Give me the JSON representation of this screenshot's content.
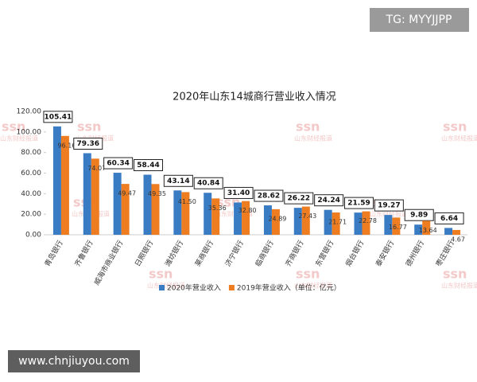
{
  "chart_data": {
    "type": "bar",
    "title": "2020年山东14城商行营业收入情况",
    "categories": [
      "青岛银行",
      "齐鲁银行",
      "威海市商业银行",
      "日照银行",
      "潍坊银行",
      "莱商银行",
      "济宁银行",
      "临商银行",
      "齐商银行",
      "东营银行",
      "烟台银行",
      "泰安银行",
      "德州银行",
      "枣庄银行"
    ],
    "series": [
      {
        "name": "2020年营业收入",
        "color": "#3a7cc3",
        "values": [
          105.41,
          79.36,
          60.34,
          58.44,
          43.14,
          40.84,
          31.4,
          28.62,
          26.22,
          24.24,
          21.59,
          19.27,
          9.89,
          6.64
        ],
        "value_labels": [
          "105.41",
          "79.36",
          "60.34",
          "58.44",
          "43.14",
          "40.84",
          "31.40",
          "28.62",
          "26.22",
          "24.24",
          "21.59",
          "19.27",
          "9.89",
          "6.64"
        ]
      },
      {
        "name": "2019年营业收入（单位：亿元）",
        "color": "#ee7d22",
        "values": [
          96.16,
          74.07,
          49.47,
          49.35,
          41.5,
          35.36,
          32.8,
          24.89,
          27.43,
          21.71,
          22.78,
          16.77,
          13.64,
          4.67
        ],
        "value_labels": [
          "96.16",
          "74.07",
          "49.47",
          "49.35",
          "41.50",
          "35.36",
          "32.80",
          "24.89",
          "27.43",
          "21.71",
          "22.78",
          "16.77",
          "13.64",
          "4.67"
        ]
      }
    ],
    "ylim": [
      0,
      120
    ],
    "yticks": [
      {
        "value": 0,
        "label": "0.00"
      },
      {
        "value": 20,
        "label": "20.00"
      },
      {
        "value": 40,
        "label": "40.00"
      },
      {
        "value": 60,
        "label": "60.00"
      },
      {
        "value": 80,
        "label": "80.00"
      },
      {
        "value": 100,
        "label": "100.00"
      },
      {
        "value": 120,
        "label": "120.00"
      }
    ],
    "grid": false
  },
  "overlays": {
    "tg": "TG: MYYJJPP",
    "site": "www.chnjiuyou.com",
    "watermark_logo": "ssn",
    "watermark_text": "山东财经报道"
  }
}
